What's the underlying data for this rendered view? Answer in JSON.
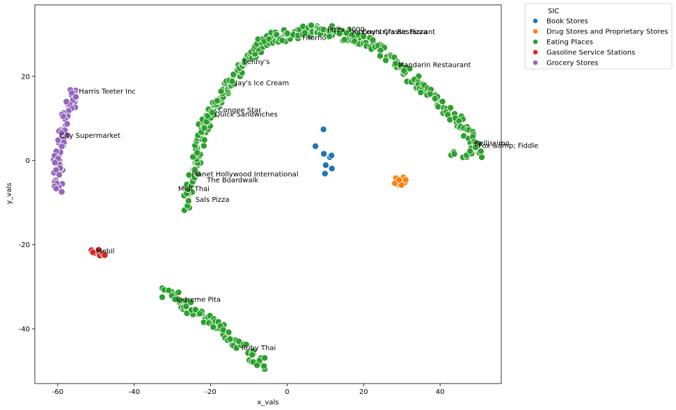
{
  "chart_data": {
    "type": "scatter",
    "xlabel": "x_vals",
    "ylabel": "y_vals",
    "xlim": [
      -66,
      56
    ],
    "ylim": [
      -53,
      37
    ],
    "xticks": [
      -60,
      -40,
      -20,
      0,
      20,
      40
    ],
    "yticks": [
      -40,
      -20,
      0,
      20
    ],
    "grid": false,
    "legend": {
      "title": "SIC",
      "placement": "outside-top-right",
      "entries": [
        {
          "label": "Book Stores",
          "color": "#1f77b4"
        },
        {
          "label": "Drug Stores and Proprietary Stores",
          "color": "#ff7f0e"
        },
        {
          "label": "Eating Places",
          "color": "#2ca02c"
        },
        {
          "label": "Gasoline Service Stations",
          "color": "#d62728"
        },
        {
          "label": "Grocery Stores",
          "color": "#9467bd"
        }
      ]
    },
    "series": [
      {
        "name": "Book Stores",
        "color": "#1f77b4",
        "points": [
          [
            9.5,
            7.4
          ],
          [
            7.4,
            3.4
          ],
          [
            9.6,
            1.6
          ],
          [
            11.2,
            0.8
          ],
          [
            11.6,
            1.2
          ],
          [
            10.1,
            -1.1
          ],
          [
            11.7,
            -1.9
          ],
          [
            9.9,
            -3.1
          ]
        ]
      },
      {
        "name": "Drug Stores and Proprietary Stores",
        "color": "#ff7f0e",
        "points": [
          [
            28.5,
            -4.2
          ],
          [
            29.0,
            -5.6
          ],
          [
            29.6,
            -4.8
          ],
          [
            30.4,
            -4.0
          ],
          [
            30.8,
            -5.2
          ],
          [
            29.9,
            -5.8
          ],
          [
            28.2,
            -5.4
          ],
          [
            31.0,
            -4.6
          ],
          [
            29.3,
            -4.6
          ]
        ]
      },
      {
        "name": "Gasoline Service Stations",
        "color": "#d62728",
        "points": [
          [
            -51.2,
            -21.3
          ],
          [
            -50.4,
            -22.0
          ],
          [
            -49.6,
            -21.6
          ],
          [
            -49.0,
            -22.6
          ],
          [
            -48.2,
            -22.1
          ],
          [
            -47.7,
            -22.5
          ],
          [
            -50.8,
            -21.8
          ],
          [
            -49.3,
            -21.2
          ]
        ]
      },
      {
        "name": "Grocery Stores",
        "segments": [
          {
            "from": [
              -55.3,
              16.5
            ],
            "to": [
              -57.0,
              12.5
            ],
            "count": 18
          },
          {
            "from": [
              -57.5,
              11.0
            ],
            "to": [
              -59.6,
              3.0
            ],
            "count": 22
          },
          {
            "from": [
              -59.8,
              2.5
            ],
            "to": [
              -59.7,
              -6.5
            ],
            "count": 25
          }
        ],
        "color": "#9467bd"
      },
      {
        "name": "Eating Places",
        "color": "#2ca02c",
        "segments": [
          {
            "from": [
              -26.0,
              -10.5
            ],
            "to": [
              -22.0,
              8.0
            ],
            "count": 50
          },
          {
            "from": [
              -22.0,
              8.0
            ],
            "to": [
              -15.0,
              18.5
            ],
            "count": 45
          },
          {
            "from": [
              -15.0,
              18.5
            ],
            "to": [
              -6.0,
              28.5
            ],
            "count": 50
          },
          {
            "from": [
              -6.0,
              28.5
            ],
            "to": [
              8.0,
              31.5
            ],
            "count": 55
          },
          {
            "from": [
              8.0,
              31.5
            ],
            "to": [
              22.0,
              28.0
            ],
            "count": 55
          },
          {
            "from": [
              22.0,
              28.0
            ],
            "to": [
              35.0,
              18.0
            ],
            "count": 45
          },
          {
            "from": [
              35.0,
              18.0
            ],
            "to": [
              45.0,
              9.0
            ],
            "count": 35
          },
          {
            "from": [
              45.0,
              9.0
            ],
            "to": [
              50.0,
              3.0
            ],
            "count": 20
          },
          {
            "from": [
              44.0,
              2.0
            ],
            "to": [
              50.5,
              2.0
            ],
            "count": 14
          },
          {
            "from": [
              -32.0,
              -31.0
            ],
            "to": [
              -18.0,
              -39.5
            ],
            "count": 40
          },
          {
            "from": [
              -18.0,
              -39.5
            ],
            "to": [
              -6.0,
              -48.5
            ],
            "count": 40
          }
        ]
      }
    ],
    "annotations": [
      {
        "text": "Harris Teeter Inc",
        "x": -54.5,
        "y": 16.5
      },
      {
        "text": "City Supermarket",
        "x": -59.5,
        "y": 6.0
      },
      {
        "text": "Mobil",
        "x": -50.0,
        "y": -21.5
      },
      {
        "text": "Extreme Pita",
        "x": -29.0,
        "y": -33.0
      },
      {
        "text": "Ruby Thai",
        "x": -12.0,
        "y": -44.5
      },
      {
        "text": "Planet Hollywood International",
        "x": -25.0,
        "y": -3.2
      },
      {
        "text": "The Boardwalk",
        "x": -21.0,
        "y": -4.6
      },
      {
        "text": "Midi Thai",
        "x": -28.5,
        "y": -6.7
      },
      {
        "text": "Sals Pizza",
        "x": -24.0,
        "y": -9.2
      },
      {
        "text": "Congee Star",
        "x": -18.0,
        "y": 12.0
      },
      {
        "text": "Quick Sandwiches",
        "x": -19.0,
        "y": 11.0
      },
      {
        "text": "Jay's Ice Cream",
        "x": -13.5,
        "y": 18.5
      },
      {
        "text": "Lenny's",
        "x": -11.5,
        "y": 23.5
      },
      {
        "text": "Pizza 3000",
        "x": 10.5,
        "y": 31.2
      },
      {
        "text": "Fitorno",
        "x": 4.0,
        "y": 29.2
      },
      {
        "text": "Johnny's Classic Pizza",
        "x": 17.0,
        "y": 30.6
      },
      {
        "text": "Country's Restaurant",
        "x": 19.5,
        "y": 30.6
      },
      {
        "text": "Mandarin Restaurant",
        "x": 29.0,
        "y": 22.8
      },
      {
        "text": "Bellissimo",
        "x": 49.0,
        "y": 4.2
      },
      {
        "text": "Fox &amp; Fiddle",
        "x": 50.0,
        "y": 3.6
      }
    ]
  }
}
